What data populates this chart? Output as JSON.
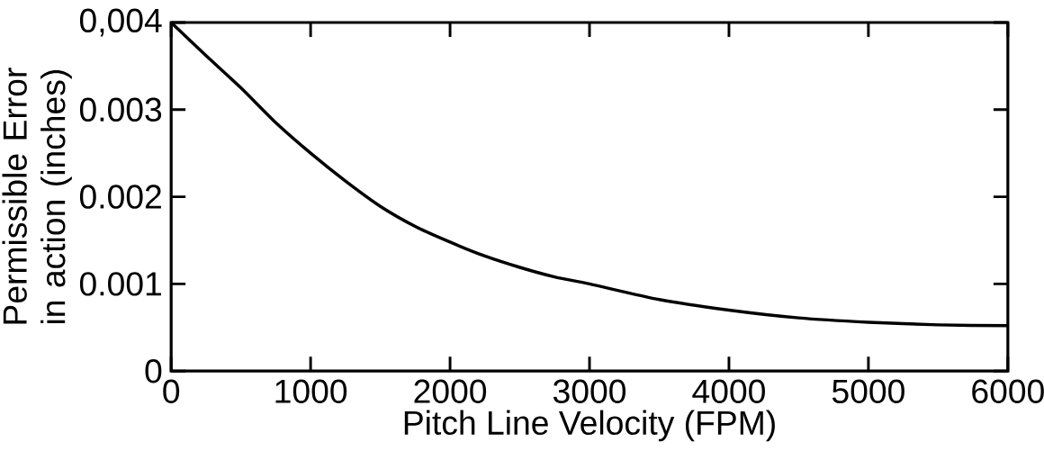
{
  "chart_data": {
    "type": "line",
    "xlabel": "Pitch Line Velocity (FPM)",
    "ylabel": "Permissible Error in action (inches)",
    "x": [
      0,
      250,
      500,
      750,
      1000,
      1250,
      1500,
      1750,
      2000,
      2250,
      2500,
      2750,
      3000,
      3500,
      4000,
      4500,
      5000,
      5500,
      6000
    ],
    "series": [
      {
        "color": "#000000",
        "values": [
          0.004,
          0.00362,
          0.00325,
          0.00285,
          0.0025,
          0.00218,
          0.00189,
          0.00166,
          0.00148,
          0.00132,
          0.00119,
          0.00108,
          0.001,
          0.00082,
          0.0007,
          0.00061,
          0.00056,
          0.00053,
          0.00052
        ]
      }
    ],
    "xlim": [
      0,
      6000
    ],
    "ylim": [
      0,
      0.004
    ],
    "xticks": [
      0,
      1000,
      2000,
      3000,
      4000,
      5000,
      6000
    ],
    "yticks": [
      0,
      0.001,
      0.002,
      0.003,
      {
        "value": 0.004,
        "label": "0,004"
      }
    ],
    "grid": false,
    "marker": "none",
    "line_style": "solid"
  }
}
